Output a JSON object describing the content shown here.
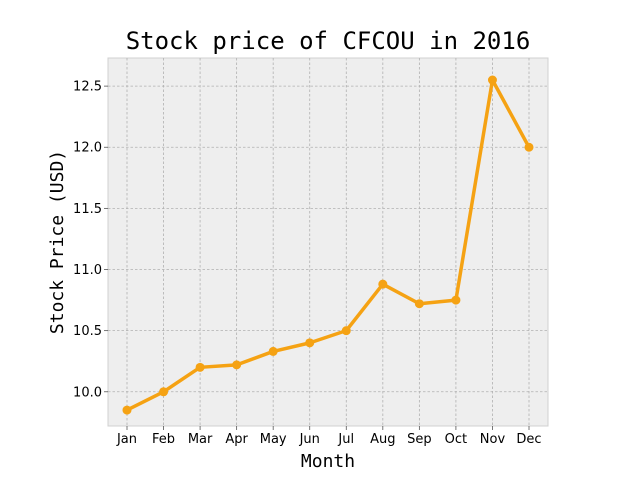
{
  "chart_data": {
    "type": "line",
    "title": "Stock price of CFCOU in 2016",
    "xlabel": "Month",
    "ylabel": "Stock Price (USD)",
    "categories": [
      "Jan",
      "Feb",
      "Mar",
      "Apr",
      "May",
      "Jun",
      "Jul",
      "Aug",
      "Sep",
      "Oct",
      "Nov",
      "Dec"
    ],
    "series": [
      {
        "values": [
          9.85,
          10.0,
          10.2,
          10.22,
          10.33,
          10.4,
          10.5,
          10.88,
          10.72,
          10.75,
          12.55,
          12.0
        ],
        "color": "#f5a213"
      }
    ],
    "ylim": [
      9.72,
      12.73
    ],
    "yticks": [
      10.0,
      10.5,
      11.0,
      11.5,
      12.0,
      12.5
    ],
    "ytick_labels": [
      "10.0",
      "10.5",
      "11.0",
      "11.5",
      "12.0",
      "12.5"
    ],
    "grid": true,
    "plot_background": "#eeeeee",
    "grid_color": "#b0b0b0"
  }
}
